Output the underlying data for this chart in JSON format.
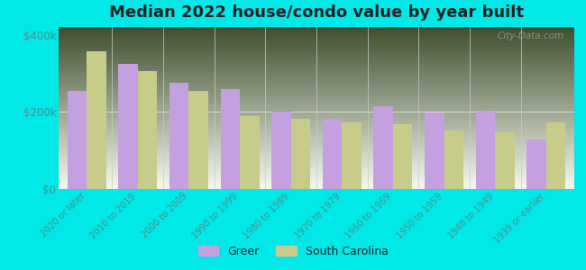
{
  "title": "Median 2022 house/condo value by year built",
  "categories": [
    "2020 or later",
    "2010 to 2019",
    "2000 to 2009",
    "1990 to 1999",
    "1980 to 1989",
    "1970 to 1979",
    "1960 to 1969",
    "1950 to 1959",
    "1940 to 1949",
    "1939 or earlier"
  ],
  "greer_values": [
    255000,
    325000,
    275000,
    258000,
    200000,
    183000,
    215000,
    198000,
    203000,
    128000
  ],
  "sc_values": [
    358000,
    305000,
    255000,
    188000,
    183000,
    172000,
    168000,
    152000,
    148000,
    172000
  ],
  "greer_color": "#c4a0e0",
  "sc_color": "#c8cc8a",
  "background_color": "#00e8e8",
  "plot_bg_top": "#e8f0d8",
  "plot_bg_bottom": "#f8faf0",
  "ylim": [
    0,
    420000
  ],
  "ytick_labels": [
    "$0",
    "$200k",
    "$400k"
  ],
  "ytick_values": [
    0,
    200000,
    400000
  ],
  "title_fontsize": 13,
  "tick_label_color": "#4a9090",
  "legend_labels": [
    "Greer",
    "South Carolina"
  ],
  "watermark": "City-Data.com"
}
